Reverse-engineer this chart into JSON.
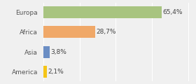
{
  "categories": [
    "America",
    "Asia",
    "Africa",
    "Europa"
  ],
  "values": [
    2.1,
    3.8,
    28.7,
    65.4
  ],
  "labels": [
    "2,1%",
    "3,8%",
    "28,7%",
    "65,4%"
  ],
  "bar_colors": [
    "#f5c518",
    "#6b8ec4",
    "#f0a868",
    "#a8c480"
  ],
  "background_color": "#f0f0f0",
  "xlim": [
    0,
    82
  ],
  "label_fontsize": 6.5,
  "tick_fontsize": 6.5
}
